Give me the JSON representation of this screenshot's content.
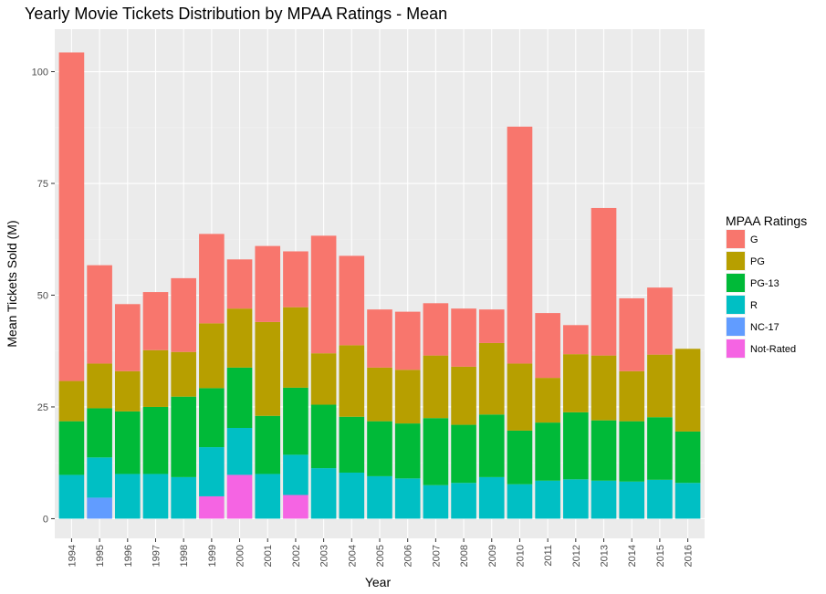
{
  "chart_data": {
    "type": "bar",
    "stacked": true,
    "title": "Yearly Movie Tickets Distribution by MPAA Ratings - Mean",
    "xlabel": "Year",
    "ylabel": "Mean Tickets Sold (M)",
    "ylim": [
      0,
      110
    ],
    "yticks": [
      "0",
      "25",
      "50",
      "75",
      "100"
    ],
    "grid": true,
    "legend_title": "MPAA Ratings",
    "legend_position": "right",
    "categories": [
      "1994",
      "1995",
      "1996",
      "1997",
      "1998",
      "1999",
      "2000",
      "2001",
      "2002",
      "2003",
      "2004",
      "2005",
      "2006",
      "2007",
      "2008",
      "2009",
      "2010",
      "2011",
      "2012",
      "2013",
      "2014",
      "2015",
      "2016"
    ],
    "series": [
      {
        "name": "G",
        "color": "#F8766D",
        "values": [
          73.5,
          22.0,
          15.0,
          13.0,
          16.5,
          20.0,
          11.0,
          17.0,
          12.5,
          26.3,
          20.0,
          13.0,
          13.0,
          11.7,
          13.0,
          7.5,
          53.0,
          14.5,
          6.5,
          33.0,
          16.3,
          15.0,
          0
        ]
      },
      {
        "name": "PG",
        "color": "#B79F00",
        "values": [
          9.0,
          10.0,
          9.0,
          12.7,
          10.0,
          14.5,
          13.2,
          21.0,
          18.0,
          11.5,
          16.0,
          12.0,
          12.0,
          14.0,
          13.0,
          16.0,
          15.0,
          10.0,
          13.0,
          14.5,
          11.2,
          14.0,
          18.5
        ]
      },
      {
        "name": "PG-13",
        "color": "#00BA38",
        "values": [
          12.0,
          11.0,
          14.0,
          15.0,
          18.0,
          13.2,
          13.5,
          13.0,
          15.0,
          14.2,
          12.5,
          12.3,
          12.3,
          15.0,
          13.0,
          14.0,
          12.0,
          13.0,
          15.0,
          13.5,
          13.5,
          14.0,
          11.5
        ]
      },
      {
        "name": "R",
        "color": "#00BFC4",
        "values": [
          9.8,
          9.0,
          10.0,
          10.0,
          9.3,
          11.0,
          10.5,
          10.0,
          9.0,
          11.3,
          10.3,
          9.5,
          9.0,
          7.5,
          8.0,
          9.3,
          7.7,
          8.5,
          8.8,
          8.5,
          8.3,
          8.7,
          8.0
        ]
      },
      {
        "name": "NC-17",
        "color": "#619CFF",
        "values": [
          0,
          4.7,
          0,
          0,
          0,
          0,
          0,
          0,
          0,
          0,
          0,
          0,
          0,
          0,
          0,
          0,
          0,
          0,
          0,
          0,
          0,
          0,
          0
        ]
      },
      {
        "name": "Not-Rated",
        "color": "#F564E3",
        "values": [
          0,
          0,
          0,
          0,
          0,
          5.0,
          9.8,
          0,
          5.3,
          0,
          0,
          0,
          0,
          0,
          0,
          0,
          0,
          0,
          0,
          0,
          0,
          0,
          0
        ]
      }
    ]
  }
}
